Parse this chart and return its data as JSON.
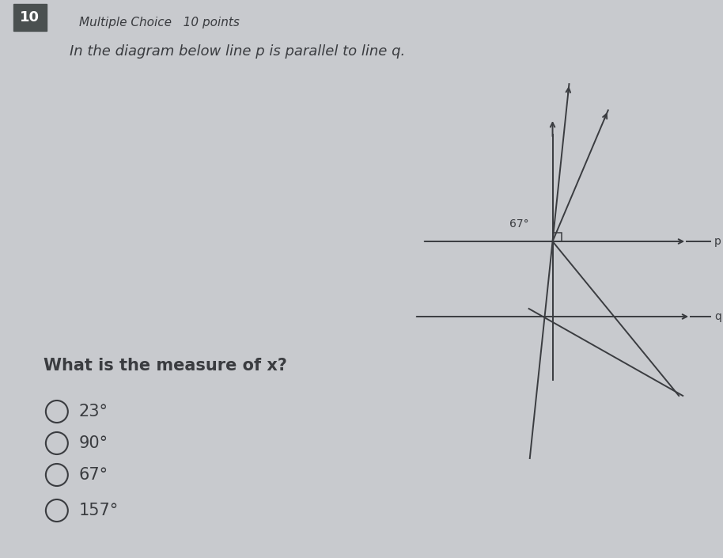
{
  "bg_color": "#c8cace",
  "title_num": "10",
  "title_num_bg": "#4a5050",
  "title_num_color": "#ffffff",
  "header_text1": "Multiple Choice   10 points",
  "header_text2": "In the diagram below line p is parallel to line q.",
  "question_text": "What is the measure of x?",
  "choices": [
    "23°",
    "90°",
    "67°",
    "157°"
  ],
  "angle_label": "67°",
  "line_p_label": "p",
  "line_q_label": "q",
  "line_color": "#3a3c40",
  "text_color": "#3a3c40",
  "header_fontsize": 12,
  "question_fontsize": 15,
  "choice_fontsize": 15
}
